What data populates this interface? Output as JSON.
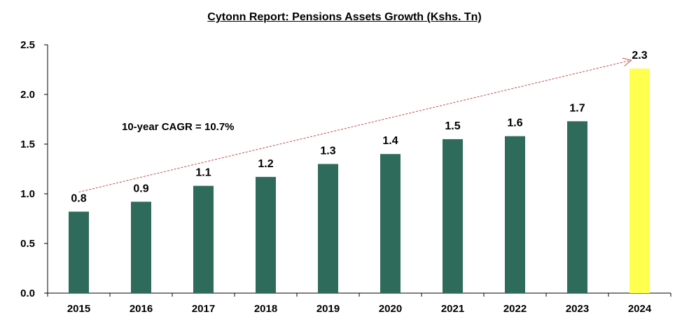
{
  "chart_data": {
    "type": "bar",
    "title": "Cytonn Report: Pensions Assets Growth (Kshs. Tn)",
    "xlabel": "",
    "ylabel": "",
    "categories": [
      "2015",
      "2016",
      "2017",
      "2018",
      "2019",
      "2020",
      "2021",
      "2022",
      "2023",
      "2024"
    ],
    "values": [
      0.82,
      0.92,
      1.08,
      1.17,
      1.3,
      1.4,
      1.55,
      1.58,
      1.73,
      2.26
    ],
    "data_labels": [
      "0.8",
      "0.9",
      "1.1",
      "1.2",
      "1.3",
      "1.4",
      "1.5",
      "1.6",
      "1.7",
      "2.3"
    ],
    "ylim": [
      0,
      2.5
    ],
    "yticks": [
      "0.0",
      "0.5",
      "1.0",
      "1.5",
      "2.0",
      "2.5"
    ],
    "grid": false,
    "colors": {
      "bar": "#2E6B5B",
      "highlight": "#FFFF4D",
      "trend_arrow": "#C0504D"
    },
    "highlight_index": 9,
    "annotation": "10-year CAGR = 10.7%"
  }
}
